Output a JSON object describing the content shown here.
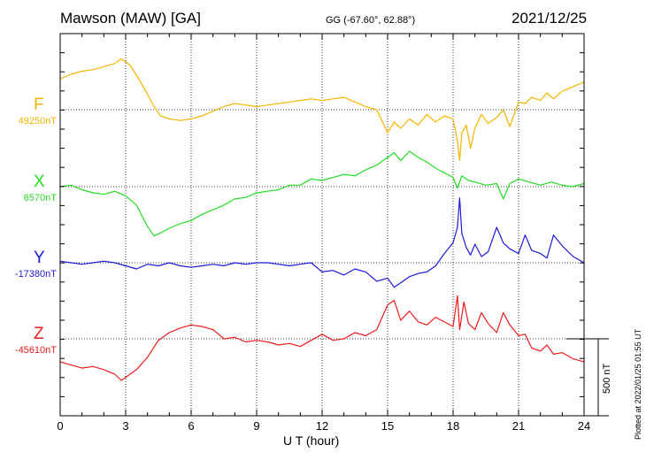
{
  "header": {
    "station": "Mawson (MAW)  [GA]",
    "coords": "GG (-67.60°,  62.88°)",
    "date": "2021/12/25"
  },
  "plotted_note": "Plotted at 2022/01/25 01:55 UT",
  "scale_label": "500 nT",
  "chart_data": {
    "type": "line",
    "xlabel": "U T (hour)",
    "xlim": [
      0,
      24
    ],
    "xticks": [
      0,
      3,
      6,
      9,
      12,
      15,
      18,
      21,
      24
    ],
    "grid": true,
    "scale_bar_nT": 500,
    "series": [
      {
        "name": "F",
        "baseline_label": "49250nT",
        "baseline_nT": 49250,
        "color": "#f5b400",
        "x": [
          0,
          0.5,
          1,
          1.5,
          2,
          2.5,
          2.8,
          3.2,
          3.6,
          4.0,
          4.3,
          4.6,
          5.0,
          5.5,
          6.0,
          6.5,
          7.0,
          7.5,
          8.0,
          8.5,
          9.0,
          9.5,
          10.0,
          10.5,
          11.0,
          11.5,
          12.0,
          12.5,
          13.0,
          13.5,
          14.0,
          14.5,
          15.0,
          15.3,
          15.6,
          16.0,
          16.4,
          16.8,
          17.2,
          17.6,
          18.0,
          18.2,
          18.3,
          18.4,
          18.6,
          18.8,
          19.0,
          19.3,
          19.6,
          20.0,
          20.3,
          20.6,
          21.0,
          21.3,
          21.6,
          22.0,
          22.3,
          22.6,
          23.0,
          23.5,
          24.0
        ],
        "y": [
          200,
          230,
          250,
          260,
          280,
          300,
          330,
          290,
          200,
          100,
          20,
          -40,
          -60,
          -70,
          -60,
          -40,
          -10,
          20,
          40,
          30,
          20,
          30,
          40,
          50,
          60,
          70,
          60,
          70,
          80,
          50,
          20,
          0,
          -150,
          -80,
          -120,
          -60,
          -100,
          -30,
          -80,
          -40,
          -60,
          -200,
          -330,
          -150,
          -100,
          -250,
          -120,
          -30,
          -90,
          -50,
          0,
          -110,
          50,
          40,
          80,
          60,
          110,
          70,
          120,
          150,
          180
        ]
      },
      {
        "name": "X",
        "baseline_label": "6570nT",
        "baseline_nT": 6570,
        "color": "#22dd22",
        "x": [
          0,
          0.5,
          1,
          1.5,
          2,
          2.5,
          3.0,
          3.5,
          4.0,
          4.3,
          4.6,
          5.0,
          5.5,
          6.0,
          6.5,
          7.0,
          7.5,
          8.0,
          8.5,
          9.0,
          9.5,
          10.0,
          10.5,
          11.0,
          11.5,
          12.0,
          12.5,
          13.0,
          13.5,
          14.0,
          14.5,
          15.0,
          15.3,
          15.6,
          16.0,
          16.4,
          16.8,
          17.2,
          17.6,
          18.0,
          18.2,
          18.4,
          18.7,
          19.0,
          19.5,
          20.0,
          20.3,
          20.6,
          21.0,
          21.5,
          22.0,
          22.5,
          23.0,
          23.5,
          24.0
        ],
        "y": [
          0,
          10,
          -20,
          -40,
          -50,
          -30,
          -60,
          -120,
          -260,
          -320,
          -300,
          -270,
          -240,
          -220,
          -180,
          -150,
          -120,
          -80,
          -70,
          -40,
          -30,
          -20,
          10,
          10,
          50,
          40,
          60,
          80,
          70,
          110,
          140,
          190,
          220,
          170,
          230,
          190,
          160,
          120,
          90,
          60,
          -10,
          70,
          40,
          30,
          10,
          20,
          -80,
          20,
          50,
          30,
          10,
          30,
          10,
          0,
          20
        ]
      },
      {
        "name": "Y",
        "baseline_label": "-17380nT",
        "baseline_nT": -17380,
        "color": "#1a1ad8",
        "x": [
          0,
          0.5,
          1,
          1.5,
          2,
          2.5,
          3.0,
          3.5,
          4.0,
          4.5,
          5.0,
          5.5,
          6.0,
          6.5,
          7.0,
          7.5,
          8.0,
          8.5,
          9.0,
          9.5,
          10.0,
          10.5,
          11.0,
          11.5,
          12.0,
          12.5,
          13.0,
          13.5,
          14.0,
          14.5,
          15.0,
          15.3,
          15.6,
          16.0,
          16.4,
          16.8,
          17.2,
          17.6,
          18.0,
          18.2,
          18.3,
          18.4,
          18.6,
          18.8,
          19.0,
          19.3,
          19.6,
          20.0,
          20.3,
          20.6,
          21.0,
          21.3,
          21.6,
          22.0,
          22.3,
          22.6,
          23.0,
          23.5,
          24.0
        ],
        "y": [
          10,
          0,
          -10,
          0,
          10,
          0,
          -20,
          -40,
          -10,
          -20,
          0,
          -20,
          -30,
          -20,
          -10,
          -20,
          0,
          -10,
          0,
          0,
          -10,
          -20,
          -10,
          0,
          -60,
          -50,
          -80,
          -40,
          -60,
          -120,
          -100,
          -160,
          -130,
          -90,
          -70,
          -60,
          -20,
          60,
          130,
          230,
          420,
          190,
          100,
          50,
          120,
          40,
          70,
          230,
          130,
          90,
          60,
          180,
          80,
          60,
          30,
          180,
          110,
          40,
          0
        ]
      },
      {
        "name": "Z",
        "baseline_label": "-45610nT",
        "baseline_nT": -45610,
        "color": "#ee1c1c",
        "x": [
          0,
          0.5,
          1,
          1.5,
          2,
          2.5,
          2.8,
          3.0,
          3.5,
          4.0,
          4.5,
          5.0,
          5.5,
          6.0,
          6.5,
          7.0,
          7.5,
          8.0,
          8.5,
          9.0,
          9.5,
          10.0,
          10.5,
          11.0,
          11.5,
          12.0,
          12.5,
          13.0,
          13.5,
          14.0,
          14.5,
          15.0,
          15.3,
          15.6,
          16.0,
          16.4,
          16.8,
          17.2,
          17.6,
          18.0,
          18.2,
          18.3,
          18.5,
          18.7,
          19.0,
          19.3,
          19.6,
          20.0,
          20.3,
          20.6,
          21.0,
          21.3,
          21.6,
          22.0,
          22.3,
          22.6,
          23.0,
          23.5,
          24.0
        ],
        "y": [
          -150,
          -170,
          -190,
          -180,
          -200,
          -230,
          -270,
          -250,
          -200,
          -120,
          -10,
          40,
          70,
          90,
          80,
          60,
          0,
          10,
          -20,
          -10,
          -20,
          -40,
          -30,
          -50,
          -10,
          30,
          -10,
          0,
          40,
          20,
          60,
          220,
          250,
          120,
          180,
          110,
          90,
          140,
          110,
          80,
          280,
          60,
          240,
          100,
          60,
          170,
          100,
          40,
          170,
          90,
          20,
          30,
          -60,
          -80,
          -40,
          -100,
          -90,
          -130,
          -150
        ]
      }
    ]
  }
}
